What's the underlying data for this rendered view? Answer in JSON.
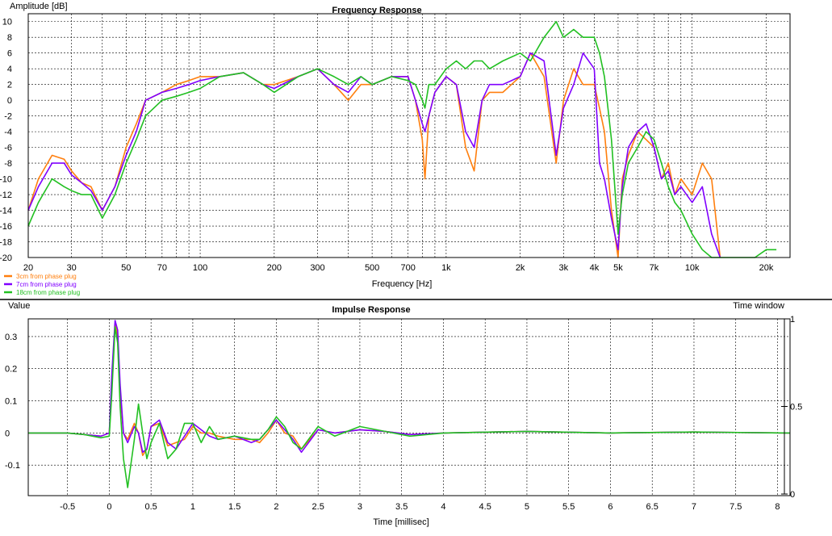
{
  "chart_data": [
    {
      "type": "line",
      "title": "Frequency Response",
      "xlabel": "Frequency [Hz]",
      "ylabel": "Amplitude [dB]",
      "xscale": "log",
      "xlim": [
        20,
        25000
      ],
      "ylim": [
        -20,
        11
      ],
      "grid": true,
      "legend_position": "bottom-left",
      "x_ticks": [
        {
          "v": 20,
          "label": "20"
        },
        {
          "v": 30,
          "label": "30"
        },
        {
          "v": 50,
          "label": "50"
        },
        {
          "v": 70,
          "label": "70"
        },
        {
          "v": 100,
          "label": "100"
        },
        {
          "v": 200,
          "label": "200"
        },
        {
          "v": 300,
          "label": "300"
        },
        {
          "v": 500,
          "label": "500"
        },
        {
          "v": 700,
          "label": "700"
        },
        {
          "v": 1000,
          "label": "1k"
        },
        {
          "v": 2000,
          "label": "2k"
        },
        {
          "v": 3000,
          "label": "3k"
        },
        {
          "v": 4000,
          "label": "4k"
        },
        {
          "v": 5000,
          "label": "5k"
        },
        {
          "v": 7000,
          "label": "7k"
        },
        {
          "v": 10000,
          "label": "10k"
        },
        {
          "v": 20000,
          "label": "20k"
        }
      ],
      "y_ticks": [
        10,
        8,
        6,
        4,
        2,
        0,
        -2,
        -4,
        -6,
        -8,
        -10,
        -12,
        -14,
        -16,
        -18,
        -20
      ],
      "series": [
        {
          "name": "3cm from phase plug",
          "color": "#ff7f0e",
          "x": [
            20,
            22,
            25,
            28,
            30,
            33,
            36,
            40,
            45,
            50,
            55,
            60,
            70,
            80,
            90,
            100,
            120,
            150,
            180,
            200,
            250,
            300,
            350,
            400,
            450,
            500,
            600,
            700,
            750,
            800,
            820,
            850,
            900,
            1000,
            1100,
            1200,
            1300,
            1400,
            1500,
            1700,
            2000,
            2200,
            2500,
            2800,
            3000,
            3300,
            3600,
            4000,
            4200,
            4400,
            4700,
            5000,
            5200,
            5500,
            6000,
            6500,
            7000,
            7500,
            8000,
            8500,
            9000,
            10000,
            11000,
            12000,
            13000
          ],
          "y": [
            -14,
            -10,
            -7,
            -7.5,
            -9,
            -10.5,
            -11,
            -14,
            -11,
            -6,
            -3,
            0,
            1,
            2,
            2.5,
            3,
            3,
            3.5,
            2,
            2,
            3,
            4,
            2,
            0,
            2,
            2,
            3,
            3,
            0,
            -5,
            -10,
            -2,
            1,
            3,
            2,
            -6,
            -9,
            0,
            1,
            1,
            3,
            6,
            3,
            -8,
            0,
            4,
            2,
            2,
            -1,
            -4,
            -14,
            -20,
            -10,
            -7,
            -4,
            -5,
            -6,
            -10,
            -8,
            -12,
            -10,
            -12,
            -8,
            -10,
            -20
          ]
        },
        {
          "name": "7cm from phase plug",
          "color": "#8000ff",
          "x": [
            20,
            22,
            25,
            28,
            30,
            33,
            36,
            40,
            45,
            50,
            55,
            60,
            70,
            80,
            90,
            100,
            120,
            150,
            180,
            200,
            250,
            300,
            350,
            400,
            450,
            500,
            600,
            700,
            750,
            800,
            820,
            850,
            900,
            1000,
            1100,
            1200,
            1300,
            1400,
            1500,
            1700,
            2000,
            2200,
            2500,
            2800,
            3000,
            3300,
            3600,
            4000,
            4200,
            4400,
            4700,
            5000,
            5200,
            5500,
            6000,
            6500,
            7000,
            7500,
            8000,
            8500,
            9000,
            10000,
            11000,
            12000,
            13000
          ],
          "y": [
            -14,
            -11,
            -8,
            -8,
            -9.5,
            -10.5,
            -11.5,
            -14,
            -11,
            -7,
            -4,
            0,
            1,
            1.5,
            2,
            2.5,
            3,
            3.5,
            2,
            1.5,
            3,
            4,
            2,
            1,
            3,
            2,
            3,
            3,
            0,
            -3,
            -4,
            -2,
            1,
            3,
            2,
            -4,
            -6,
            0,
            2,
            2,
            3,
            6,
            5,
            -7,
            -1,
            2,
            6,
            4,
            -8,
            -10,
            -15,
            -19,
            -11,
            -6,
            -4,
            -3,
            -6,
            -10,
            -9,
            -12,
            -11,
            -13,
            -11,
            -17,
            -20
          ]
        },
        {
          "name": "18cm from phase plug",
          "color": "#22c022",
          "x": [
            20,
            22,
            25,
            28,
            30,
            33,
            36,
            40,
            45,
            50,
            55,
            60,
            70,
            80,
            90,
            100,
            120,
            150,
            180,
            200,
            250,
            300,
            350,
            400,
            450,
            500,
            600,
            700,
            750,
            800,
            820,
            850,
            900,
            1000,
            1100,
            1200,
            1300,
            1400,
            1500,
            1700,
            2000,
            2200,
            2500,
            2800,
            3000,
            3300,
            3600,
            4000,
            4200,
            4400,
            4700,
            5000,
            5200,
            5500,
            6000,
            6500,
            7000,
            7500,
            8000,
            8500,
            9000,
            10000,
            11000,
            12000,
            13000,
            16000,
            18000,
            20000,
            22000
          ],
          "y": [
            -16,
            -13,
            -10,
            -11,
            -11.5,
            -12,
            -12,
            -15,
            -12,
            -8,
            -5,
            -2,
            0,
            0.5,
            1,
            1.5,
            3,
            3.5,
            2,
            1,
            3,
            4,
            3,
            2,
            3,
            2,
            3,
            2.5,
            2,
            0,
            -1,
            2,
            2,
            4,
            5,
            4,
            5,
            5,
            4,
            5,
            6,
            5,
            8,
            10,
            8,
            9,
            8,
            8,
            6,
            3,
            -5,
            -17,
            -12,
            -8,
            -6,
            -4,
            -5,
            -8,
            -11,
            -13,
            -14,
            -17,
            -19,
            -20,
            -20,
            -20,
            -20,
            -19,
            -19
          ]
        }
      ]
    },
    {
      "type": "line",
      "title": "Impulse Response",
      "xlabel": "Time [millisec]",
      "ylabel": "Value",
      "xlim": [
        -0.97,
        8.15
      ],
      "ylim": [
        -0.195,
        0.355
      ],
      "grid": true,
      "x_ticks": [
        -0.5,
        0,
        0.5,
        1,
        1.5,
        2,
        2.5,
        3,
        3.5,
        4,
        4.5,
        5,
        5.5,
        6,
        6.5,
        7,
        7.5,
        8
      ],
      "y_ticks": [
        0.3,
        0.2,
        0.1,
        0,
        -0.1
      ],
      "secondary_axis": {
        "label": "Time window",
        "ticks": [
          "1",
          "0.5",
          "0"
        ]
      },
      "series": [
        {
          "name": "3cm from phase plug",
          "color": "#ff7f0e",
          "x": [
            -0.97,
            -0.5,
            -0.3,
            -0.1,
            0,
            0.03,
            0.07,
            0.1,
            0.13,
            0.17,
            0.22,
            0.3,
            0.35,
            0.4,
            0.45,
            0.5,
            0.6,
            0.7,
            0.8,
            0.9,
            1.0,
            1.1,
            1.2,
            1.3,
            1.5,
            1.7,
            1.8,
            1.9,
            2.0,
            2.1,
            2.2,
            2.3,
            2.5,
            2.7,
            3.0,
            3.3,
            3.6,
            4.0,
            5.0,
            6.0,
            7.0,
            8.15
          ],
          "y": [
            0,
            0,
            -0.005,
            -0.01,
            0,
            0.15,
            0.34,
            0.3,
            0.12,
            0,
            -0.02,
            0.03,
            0,
            -0.07,
            -0.05,
            0.02,
            0.03,
            -0.04,
            -0.03,
            -0.02,
            0.02,
            0,
            0,
            -0.01,
            -0.02,
            -0.02,
            -0.03,
            0,
            0.04,
            0,
            -0.01,
            -0.05,
            0.01,
            0,
            0.01,
            0.005,
            -0.005,
            0,
            0.005,
            0,
            0.003,
            0
          ]
        },
        {
          "name": "7cm from phase plug",
          "color": "#8000ff",
          "x": [
            -0.97,
            -0.5,
            -0.3,
            -0.1,
            0,
            0.03,
            0.07,
            0.1,
            0.13,
            0.17,
            0.22,
            0.3,
            0.35,
            0.4,
            0.45,
            0.5,
            0.6,
            0.7,
            0.8,
            0.9,
            1.0,
            1.1,
            1.2,
            1.3,
            1.5,
            1.7,
            1.8,
            1.9,
            2.0,
            2.1,
            2.2,
            2.3,
            2.5,
            2.7,
            3.0,
            3.3,
            3.6,
            4.0,
            5.0,
            6.0,
            7.0,
            8.15
          ],
          "y": [
            0,
            0,
            -0.005,
            -0.01,
            0,
            0.18,
            0.35,
            0.32,
            0.15,
            0,
            -0.03,
            0.02,
            0,
            -0.06,
            -0.05,
            0.02,
            0.04,
            -0.03,
            -0.05,
            -0.01,
            0.03,
            0.01,
            -0.01,
            -0.02,
            -0.01,
            -0.03,
            -0.02,
            0.01,
            0.04,
            0.01,
            -0.02,
            -0.06,
            0.01,
            0,
            0.01,
            0.005,
            -0.005,
            0,
            0.005,
            0,
            0.003,
            0
          ]
        },
        {
          "name": "18cm from phase plug",
          "color": "#22c022",
          "x": [
            -0.97,
            -0.5,
            -0.3,
            -0.1,
            0,
            0.03,
            0.07,
            0.1,
            0.13,
            0.17,
            0.22,
            0.3,
            0.35,
            0.4,
            0.45,
            0.5,
            0.6,
            0.7,
            0.8,
            0.9,
            1.0,
            1.1,
            1.2,
            1.3,
            1.5,
            1.7,
            1.8,
            1.9,
            2.0,
            2.1,
            2.2,
            2.3,
            2.5,
            2.7,
            3.0,
            3.3,
            3.6,
            4.0,
            5.0,
            6.0,
            7.0,
            8.15
          ],
          "y": [
            0,
            0,
            -0.005,
            -0.015,
            -0.01,
            0.12,
            0.33,
            0.28,
            0.08,
            -0.08,
            -0.17,
            -0.02,
            0.09,
            0,
            -0.08,
            -0.03,
            0.03,
            -0.08,
            -0.05,
            0.03,
            0.03,
            -0.03,
            0.02,
            -0.02,
            -0.01,
            -0.02,
            -0.02,
            0.01,
            0.05,
            0.02,
            -0.03,
            -0.05,
            0.02,
            -0.01,
            0.02,
            0.005,
            -0.01,
            0,
            0.005,
            0,
            0.003,
            0
          ]
        }
      ]
    }
  ]
}
